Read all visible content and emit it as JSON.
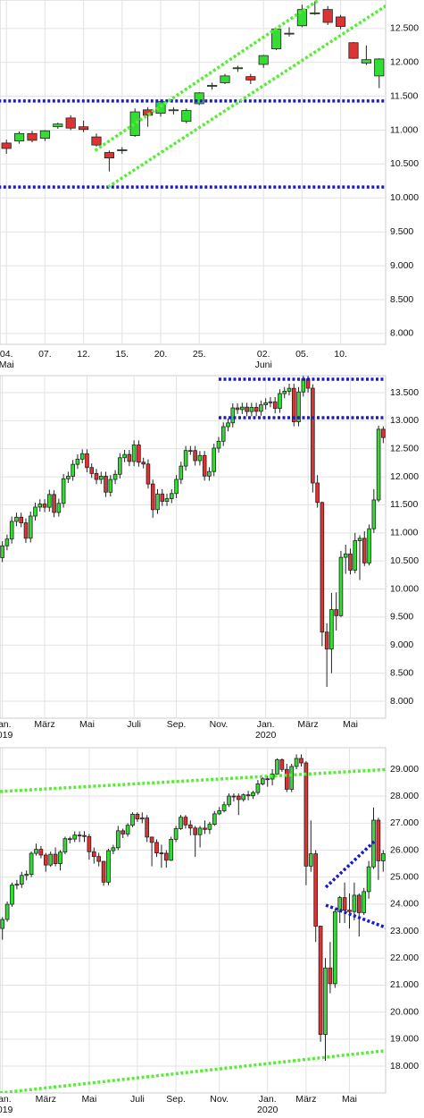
{
  "chart_data": [
    {
      "type": "candlestick",
      "up_color": "#33dd33",
      "down_color": "#dd3333",
      "grid": true,
      "open": [
        10810,
        10840,
        10950,
        10880,
        11050,
        11180,
        11050,
        10900,
        10670,
        10700,
        10920,
        11300,
        11250,
        11290,
        11130,
        11390,
        11650,
        11700,
        11910,
        11790,
        11970,
        12200,
        12420,
        12540,
        12720,
        12780,
        12670,
        12290,
        11990,
        11800
      ],
      "high": [
        10860,
        10980,
        10990,
        11000,
        11110,
        11220,
        11140,
        10950,
        10700,
        10750,
        11320,
        11340,
        11450,
        11340,
        11320,
        11560,
        11700,
        11830,
        11950,
        11830,
        12110,
        12500,
        12520,
        12850,
        12900,
        12830,
        12700,
        12300,
        12250,
        12060
      ],
      "low": [
        10650,
        10800,
        10820,
        10840,
        11020,
        11000,
        10970,
        10760,
        10390,
        10650,
        10900,
        11050,
        11200,
        11230,
        11100,
        11370,
        11600,
        11680,
        11860,
        11680,
        11920,
        12180,
        12380,
        12520,
        12700,
        12550,
        12490,
        12050,
        11960,
        11620
      ],
      "close": [
        10730,
        10950,
        10850,
        10990,
        11090,
        11030,
        11010,
        10780,
        10590,
        10710,
        11270,
        11220,
        11420,
        11300,
        11290,
        11550,
        11660,
        11800,
        11920,
        11740,
        12100,
        12490,
        12430,
        12780,
        12730,
        12590,
        12530,
        12060,
        12040,
        12050
      ],
      "ylim": [
        7840,
        12920
      ],
      "yticks": [
        {
          "value": 8000,
          "label": "8.000"
        },
        {
          "value": 8500,
          "label": "8.500"
        },
        {
          "value": 9000,
          "label": "9.000"
        },
        {
          "value": 9500,
          "label": "9.500"
        },
        {
          "value": 10000,
          "label": "10.000"
        },
        {
          "value": 10500,
          "label": "10.500"
        },
        {
          "value": 11000,
          "label": "11.000"
        },
        {
          "value": 11500,
          "label": "11.500"
        },
        {
          "value": 12000,
          "label": "12.000"
        },
        {
          "value": 12500,
          "label": "12.500"
        }
      ],
      "xticks": [
        {
          "value": 0,
          "label": "04."
        },
        {
          "value": 3,
          "label": "07."
        },
        {
          "value": 6,
          "label": "12."
        },
        {
          "value": 9,
          "label": "15."
        },
        {
          "value": 12,
          "label": "20."
        },
        {
          "value": 15,
          "label": "25."
        },
        {
          "value": 20,
          "label": "02."
        },
        {
          "value": 23,
          "label": "05."
        },
        {
          "value": 26,
          "label": "10."
        }
      ],
      "xticks_sub": [
        {
          "value": 0,
          "label": "Mai"
        },
        {
          "value": 20,
          "label": "Juni"
        }
      ],
      "lines": [
        {
          "x": [
            -1,
            30
          ],
          "values": [
            11430,
            11430
          ],
          "color": "#1a1acc"
        },
        {
          "x": [
            -1,
            30
          ],
          "values": [
            10160,
            10160
          ],
          "color": "#1a1acc"
        },
        {
          "x": [
            6.9,
            24.3
          ],
          "values": [
            10700,
            12922
          ],
          "color": "#55ee33"
        },
        {
          "x": [
            7.9,
            29.7
          ],
          "values": [
            10160,
            12856
          ],
          "color": "#55ee33"
        }
      ]
    },
    {
      "type": "candlestick",
      "up_color": "#33dd33",
      "down_color": "#dd3333",
      "grid": true,
      "open": [
        10560,
        10770,
        10890,
        11205,
        11280,
        11180,
        10905,
        11300,
        11460,
        11515,
        11457,
        11685,
        11365,
        11526,
        11965,
        12010,
        12222,
        12315,
        12412,
        12165,
        12059,
        11953,
        12011,
        11726,
        11953,
        12045,
        12340,
        12398,
        12274,
        12568,
        12260,
        12227,
        11872,
        11415,
        11694,
        11563,
        11611,
        11702,
        11953,
        12191,
        12469,
        12468,
        12288,
        12380,
        12013,
        12094,
        12511,
        12634,
        12894,
        12961,
        13228,
        13199,
        13242,
        13163,
        13237,
        13167,
        13283,
        13319,
        13337,
        13219,
        13483,
        13526,
        13577,
        12981,
        13513,
        13745,
        13579,
        11890,
        11542,
        9232,
        8929,
        9633,
        9525,
        10565,
        10626,
        10336,
        10861,
        10904,
        10465,
        11074,
        11587,
        12848
      ],
      "high": [
        10850,
        10970,
        11290,
        11360,
        11360,
        11260,
        11380,
        11540,
        11600,
        11600,
        11770,
        11760,
        11610,
        12050,
        12090,
        12300,
        12400,
        12490,
        12490,
        12240,
        12140,
        12090,
        12090,
        12030,
        12120,
        12420,
        12480,
        12480,
        12650,
        12650,
        12340,
        12310,
        11950,
        11780,
        11780,
        11700,
        11780,
        12030,
        12270,
        12550,
        12550,
        12550,
        12460,
        12460,
        12170,
        12590,
        12710,
        12970,
        13040,
        13310,
        13310,
        13320,
        13320,
        13320,
        13320,
        13360,
        13400,
        13420,
        13420,
        13560,
        13600,
        13660,
        13660,
        13600,
        13800,
        13800,
        13650,
        12030,
        11560,
        9390,
        9930,
        9940,
        10680,
        10790,
        10720,
        11000,
        10960,
        11030,
        11150,
        11780,
        12910,
        12900
      ],
      "low": [
        10480,
        10690,
        10810,
        11120,
        11100,
        10820,
        10830,
        11220,
        11380,
        11370,
        11380,
        11280,
        11290,
        11450,
        11890,
        11930,
        12140,
        12240,
        12080,
        11980,
        11870,
        11870,
        11640,
        11650,
        11870,
        11970,
        12260,
        12190,
        12190,
        12180,
        12150,
        11790,
        11270,
        11340,
        11480,
        11480,
        11530,
        11620,
        11870,
        12110,
        12390,
        12200,
        12200,
        11930,
        11930,
        12010,
        12430,
        12550,
        12810,
        12880,
        13120,
        13120,
        13080,
        13080,
        13080,
        13090,
        13200,
        13240,
        13130,
        13140,
        13400,
        13450,
        12900,
        12900,
        13430,
        13500,
        11720,
        11450,
        8980,
        8255,
        8500,
        9260,
        9500,
        10270,
        10260,
        10280,
        10160,
        10410,
        10420,
        11000,
        11550,
        12600
      ],
      "close": [
        10770,
        10890,
        11205,
        11280,
        11180,
        10905,
        11300,
        11460,
        11515,
        11457,
        11685,
        11365,
        11526,
        11965,
        12010,
        12222,
        12315,
        12412,
        12165,
        12059,
        11953,
        12011,
        11726,
        11953,
        12045,
        12340,
        12398,
        12274,
        12568,
        12260,
        12227,
        11872,
        11415,
        11694,
        11563,
        11611,
        11702,
        11953,
        12191,
        12469,
        12468,
        12288,
        12380,
        12013,
        12094,
        12511,
        12634,
        12894,
        12961,
        13228,
        13199,
        13242,
        13163,
        13237,
        13167,
        13283,
        13319,
        13337,
        13219,
        13483,
        13526,
        13577,
        12981,
        13513,
        13745,
        13579,
        11890,
        11542,
        9232,
        8929,
        9633,
        9525,
        10565,
        10626,
        10336,
        10861,
        10904,
        10465,
        11074,
        11587,
        12848,
        12700
      ],
      "ylim": [
        7697,
        13803
      ],
      "yticks": [
        {
          "value": 8000,
          "label": "8.000"
        },
        {
          "value": 8500,
          "label": "8.500"
        },
        {
          "value": 9000,
          "label": "9.000"
        },
        {
          "value": 9500,
          "label": "9.500"
        },
        {
          "value": 10000,
          "label": "10.000"
        },
        {
          "value": 10500,
          "label": "10.500"
        },
        {
          "value": 11000,
          "label": "11.000"
        },
        {
          "value": 11500,
          "label": "11.500"
        },
        {
          "value": 12000,
          "label": "12.000"
        },
        {
          "value": 12500,
          "label": "12.500"
        },
        {
          "value": 13000,
          "label": "13.000"
        },
        {
          "value": 13500,
          "label": "13.500"
        }
      ],
      "xticks": [
        {
          "value": 0,
          "label": "Jan."
        },
        {
          "value": 9,
          "label": "März"
        },
        {
          "value": 18,
          "label": "Mai"
        },
        {
          "value": 28,
          "label": "Juli"
        },
        {
          "value": 37,
          "label": "Sep."
        },
        {
          "value": 46,
          "label": "Nov."
        },
        {
          "value": 56,
          "label": "Jan."
        },
        {
          "value": 65,
          "label": "März"
        },
        {
          "value": 74,
          "label": "Mai"
        }
      ],
      "xticks_sub": [
        {
          "value": 0,
          "label": "2019"
        },
        {
          "value": 56,
          "label": "2020"
        }
      ],
      "lines": [
        {
          "x": [
            46,
            82
          ],
          "values": [
            13739,
            13739
          ],
          "color": "#1a1acc"
        },
        {
          "x": [
            46,
            82
          ],
          "values": [
            13054,
            13054
          ],
          "color": "#1a1acc"
        }
      ]
    },
    {
      "type": "candlestick",
      "up_color": "#33dd33",
      "down_color": "#dd3333",
      "grid": true,
      "open": [
        23100,
        23433,
        23996,
        24706,
        24737,
        25064,
        25106,
        25883,
        26031,
        25820,
        25450,
        25849,
        25502,
        25929,
        26425,
        26412,
        26560,
        26543,
        26505,
        25942,
        25764,
        25585,
        24815,
        25983,
        26090,
        26719,
        26600,
        26922,
        27332,
        27154,
        27192,
        26485,
        26287,
        25898,
        25886,
        25628,
        26403,
        26797,
        27220,
        26935,
        26820,
        26573,
        26816,
        26770,
        26958,
        27347,
        27462,
        27681,
        28005,
        28004,
        27876,
        28051,
        28015,
        28135,
        28455,
        28645,
        28634,
        28823,
        29348,
        28990,
        28256,
        29102,
        29398,
        29232,
        25409,
        25865,
        23186,
        19174,
        21637,
        21053,
        23719,
        24242,
        23775,
        23724,
        24331,
        23685,
        24465,
        25383,
        27111,
        25605
      ],
      "high": [
        23520,
        24100,
        24800,
        24900,
        25200,
        25250,
        25950,
        26240,
        26150,
        25900,
        25950,
        26100,
        26000,
        26500,
        26500,
        26700,
        26700,
        26700,
        26600,
        26100,
        25900,
        25600,
        26050,
        26200,
        26900,
        26800,
        27000,
        27400,
        27400,
        27400,
        27300,
        26500,
        26400,
        26200,
        26000,
        26500,
        26900,
        27300,
        27300,
        27100,
        26900,
        26900,
        27100,
        27050,
        27450,
        27600,
        27800,
        28100,
        28100,
        28100,
        28100,
        28200,
        28200,
        28600,
        28700,
        28750,
        29000,
        29400,
        29400,
        29200,
        29200,
        29550,
        29550,
        29300,
        27100,
        26000,
        23200,
        22000,
        22600,
        23800,
        24300,
        24800,
        24400,
        24800,
        24400,
        24600,
        25600,
        27580,
        27200,
        26000
      ],
      "low": [
        22680,
        23350,
        23900,
        24550,
        24600,
        24880,
        25000,
        25800,
        25700,
        25200,
        25380,
        25400,
        25250,
        25850,
        26250,
        26300,
        26300,
        26300,
        25650,
        25500,
        25400,
        24680,
        24700,
        25850,
        26000,
        26450,
        26500,
        26850,
        27050,
        27000,
        26300,
        25400,
        25750,
        25350,
        25350,
        25600,
        26300,
        26750,
        26800,
        26550,
        25750,
        26100,
        26600,
        26600,
        26900,
        27300,
        27400,
        27600,
        27800,
        27300,
        27800,
        27850,
        27900,
        28050,
        28400,
        28350,
        28400,
        28800,
        28900,
        28150,
        28150,
        29000,
        29100,
        24700,
        25200,
        22600,
        18900,
        18200,
        20700,
        20900,
        23300,
        23300,
        23100,
        23400,
        22800,
        23600,
        24200,
        25300,
        24900,
        25200
      ],
      "close": [
        23433,
        23996,
        24706,
        24737,
        25064,
        25106,
        25883,
        26031,
        25820,
        25450,
        25849,
        25502,
        25929,
        26425,
        26412,
        26560,
        26543,
        26505,
        25942,
        25764,
        25585,
        24815,
        25983,
        26090,
        26719,
        26600,
        26922,
        27332,
        27154,
        27192,
        26485,
        26287,
        25898,
        25886,
        25628,
        26403,
        26797,
        27220,
        26935,
        26820,
        26573,
        26816,
        26770,
        26958,
        27347,
        27462,
        27681,
        28005,
        28004,
        27876,
        28051,
        28015,
        28135,
        28455,
        28645,
        28634,
        28823,
        29348,
        28990,
        28256,
        29102,
        29398,
        29232,
        25409,
        25865,
        23186,
        19174,
        21637,
        21053,
        23719,
        24242,
        23775,
        23724,
        24331,
        23685,
        24465,
        25383,
        27111,
        25605,
        25871
      ],
      "ylim": [
        17006,
        29795
      ],
      "yticks": [
        {
          "value": 18000,
          "label": "18.000"
        },
        {
          "value": 19000,
          "label": "19.000"
        },
        {
          "value": 20000,
          "label": "20.000"
        },
        {
          "value": 21000,
          "label": "21.000"
        },
        {
          "value": 22000,
          "label": "22.000"
        },
        {
          "value": 23000,
          "label": "23.000"
        },
        {
          "value": 24000,
          "label": "24.000"
        },
        {
          "value": 25000,
          "label": "25.000"
        },
        {
          "value": 26000,
          "label": "26.000"
        },
        {
          "value": 27000,
          "label": "27.000"
        },
        {
          "value": 28000,
          "label": "28.000"
        },
        {
          "value": 29000,
          "label": "29.000"
        }
      ],
      "xticks": [
        {
          "value": 0,
          "label": "Jan."
        },
        {
          "value": 9,
          "label": "März"
        },
        {
          "value": 18,
          "label": "Mai"
        },
        {
          "value": 28,
          "label": "Juli"
        },
        {
          "value": 36,
          "label": "Sep."
        },
        {
          "value": 45,
          "label": "Nov."
        },
        {
          "value": 55,
          "label": "Jan."
        },
        {
          "value": 63,
          "label": "März"
        },
        {
          "value": 72,
          "label": "Mai"
        }
      ],
      "xticks_sub": [
        {
          "value": 0,
          "label": "2019"
        },
        {
          "value": 55,
          "label": "2020"
        }
      ],
      "lines": [
        {
          "x": [
            -0.5,
            87.5
          ],
          "values": [
            28172,
            29066
          ],
          "color": "#55ee33"
        },
        {
          "x": [
            -0.5,
            87.5
          ],
          "values": [
            17006,
            18729
          ],
          "color": "#55ee33"
        },
        {
          "x": [
            67.1,
            77.3
          ],
          "values": [
            24626,
            26349
          ],
          "color": "#1a1acc"
        },
        {
          "x": [
            67.1,
            81
          ],
          "values": [
            23963,
            23036
          ],
          "color": "#1a1acc"
        }
      ]
    }
  ]
}
